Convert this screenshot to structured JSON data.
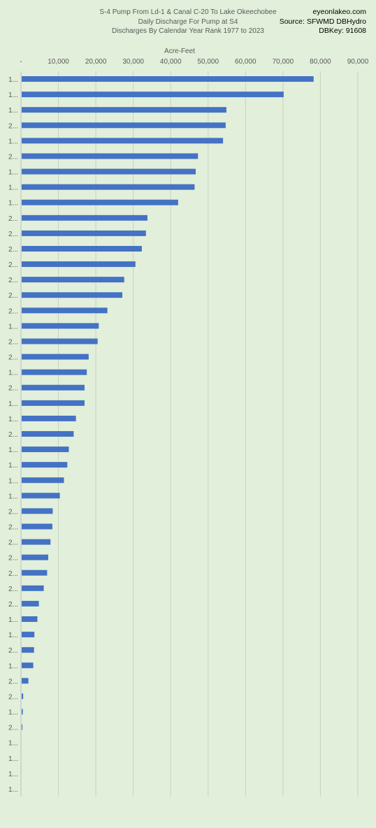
{
  "header": {
    "title_lines": [
      "S-4 Pump From Ld-1 & Canal C-20 To Lake Okeechobee",
      "Daily Discharge For Pump at S4",
      "Discharges By Calendar Year Rank 1977 to 2023"
    ],
    "source_lines": [
      "eyeonlakeo.com",
      "Source: SFWMD DBHydro",
      "DBKey: 91608"
    ]
  },
  "chart_data": {
    "type": "bar",
    "orientation": "horizontal",
    "title": "S-4 Pump From Ld-1 & Canal C-20 To Lake Okeechobee / Daily Discharge For Pump at S4 / Discharges By Calendar Year Rank 1977 to 2023",
    "xlabel": "Acre-Feet",
    "ylabel": "",
    "xlim": [
      0,
      90000
    ],
    "x_tick_labels": [
      "-",
      "10,000",
      "20,000",
      "30,000",
      "40,000",
      "50,000",
      "60,000",
      "70,000",
      "80,000",
      "90,000"
    ],
    "grid": "vertical",
    "bar_color": "#4472c4",
    "categories": [
      "1...",
      "1...",
      "1...",
      "2...",
      "1...",
      "2...",
      "1...",
      "1...",
      "1...",
      "2...",
      "2...",
      "2...",
      "2...",
      "2...",
      "2...",
      "2...",
      "1...",
      "2...",
      "2...",
      "1...",
      "2...",
      "1...",
      "1...",
      "2...",
      "1...",
      "1...",
      "1...",
      "1...",
      "2...",
      "2...",
      "2...",
      "2...",
      "2...",
      "2...",
      "2...",
      "1...",
      "1...",
      "2...",
      "1...",
      "2...",
      "2...",
      "1...",
      "2...",
      "1...",
      "1...",
      "1...",
      "1..."
    ],
    "values": [
      78000,
      70000,
      54700,
      54500,
      53800,
      47100,
      46500,
      46200,
      41800,
      33600,
      33200,
      32100,
      30400,
      27400,
      26900,
      22900,
      20600,
      20300,
      17900,
      17400,
      16800,
      16800,
      14500,
      13900,
      12600,
      12200,
      11300,
      10200,
      8300,
      8200,
      7700,
      7100,
      6800,
      5900,
      4600,
      4200,
      3400,
      3300,
      3100,
      1800,
      400,
      300,
      200,
      0,
      0,
      0,
      0
    ]
  }
}
